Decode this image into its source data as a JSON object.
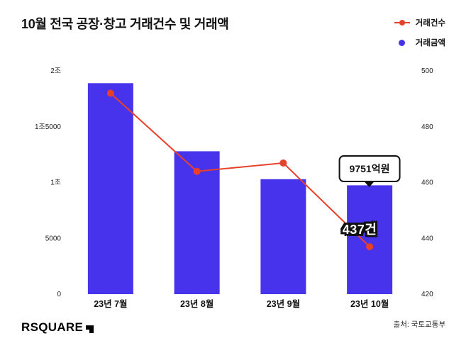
{
  "header": {
    "title": "10월 전국 공장·창고 거래건수 및 거래액"
  },
  "legend": {
    "items": [
      {
        "label": "거래건수",
        "marker": "line-with-dot",
        "color": "#e7402b"
      },
      {
        "label": "거래금액",
        "marker": "dot",
        "color": "#4733eb"
      }
    ]
  },
  "chart_data": {
    "type": "combo",
    "categories": [
      "23년 7월",
      "23년 8월",
      "23년 9월",
      "23년 10월"
    ],
    "series": [
      {
        "name": "거래금액",
        "type": "bar",
        "axis": "left",
        "unit": "억원",
        "color": "#4733eb",
        "values": [
          18900,
          12800,
          10300,
          9751
        ]
      },
      {
        "name": "거래건수",
        "type": "line",
        "axis": "right",
        "unit": "건",
        "color": "#e7402b",
        "values": [
          492,
          464,
          467,
          437
        ]
      }
    ],
    "left_axis": {
      "ticks": [
        "2조",
        "1조5000",
        "1조",
        "5000",
        "0"
      ],
      "min": 0,
      "max": 20000,
      "unit": "억원"
    },
    "right_axis": {
      "ticks": [
        "500",
        "480",
        "460",
        "440",
        "420"
      ],
      "min": 420,
      "max": 500,
      "unit": "건"
    },
    "grid": false,
    "legend_position": "top-right",
    "annotations": [
      {
        "text": "9751억원",
        "style": "callout-box",
        "target": "23년 10월 거래금액 bar"
      },
      {
        "text": "437건",
        "style": "outlined-bold-label",
        "target": "23년 10월 거래건수 point"
      }
    ]
  },
  "footer": {
    "logo_text": "RSQUARE",
    "source": "출처: 국토교통부"
  }
}
